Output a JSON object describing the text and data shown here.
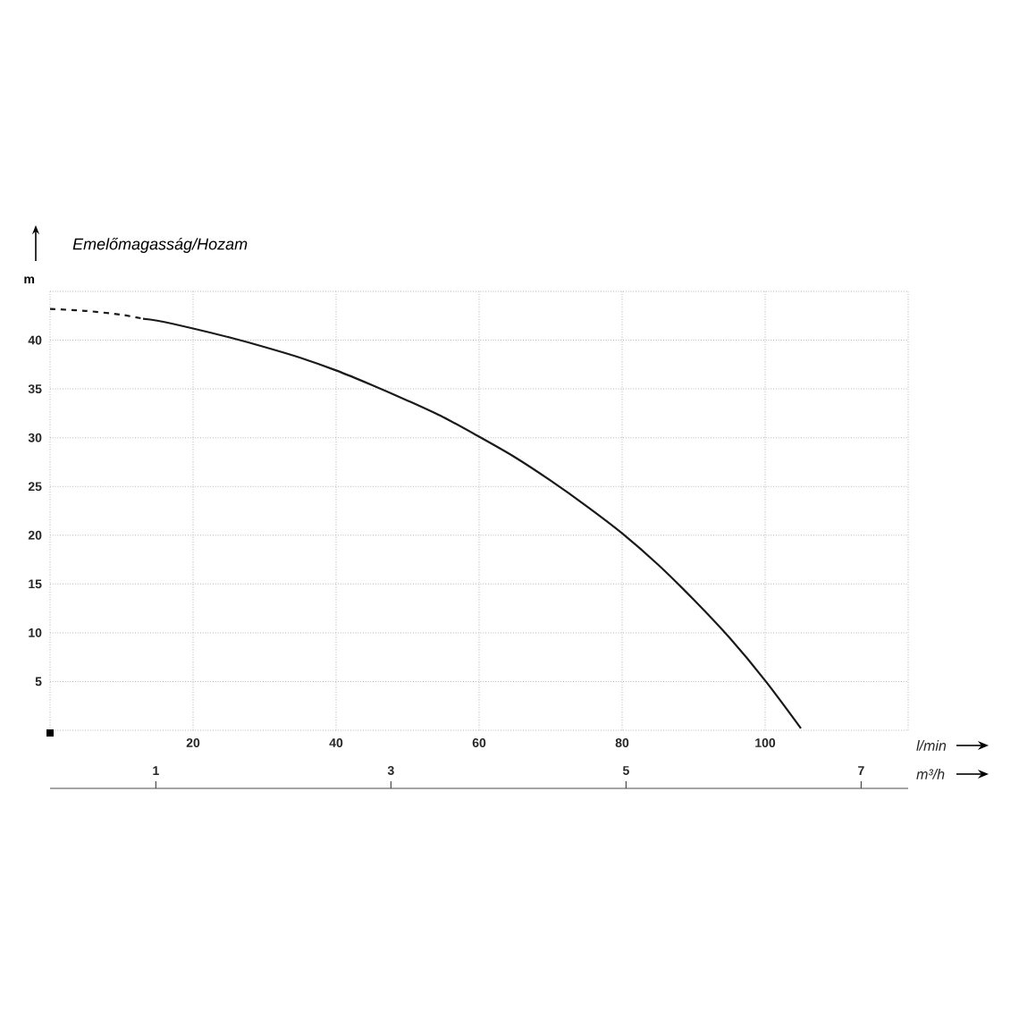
{
  "chart_data": {
    "type": "line",
    "title": "Emelőmagasság/Hozam",
    "xlabel": "l/min",
    "ylabel": "m",
    "x2label": "m³/h",
    "series": [
      {
        "x": [
          0,
          5,
          10,
          13
        ],
        "values": [
          43.2,
          43.0,
          42.6,
          42.2
        ],
        "color": "#1a1a1a",
        "line_style": "dashed"
      },
      {
        "x": [
          13,
          15,
          20,
          25,
          30,
          35,
          40,
          45,
          50,
          55,
          60,
          65,
          70,
          75,
          80,
          85,
          90,
          95,
          100,
          105
        ],
        "values": [
          42.2,
          42.0,
          41.2,
          40.3,
          39.3,
          38.2,
          36.9,
          35.4,
          33.8,
          32.1,
          30.1,
          28.0,
          25.6,
          23.0,
          20.2,
          17.0,
          13.4,
          9.5,
          5.1,
          0.2
        ],
        "color": "#1a1a1a",
        "line_style": "solid"
      }
    ],
    "xlim": [
      0,
      120
    ],
    "xticks": [
      {
        "value": 0,
        "label": null
      },
      20,
      40,
      60,
      80,
      100,
      {
        "value": 120,
        "label": null
      }
    ],
    "ylim": [
      0,
      45
    ],
    "yticks": [
      {
        "value": 0,
        "label": null
      },
      5,
      10,
      15,
      20,
      25,
      30,
      35,
      40,
      {
        "value": 45,
        "label": null
      }
    ],
    "x2lim": [
      0.1,
      7.4
    ],
    "x2ticks": [
      1,
      3,
      5,
      7
    ],
    "grid": true,
    "marker": "none"
  }
}
